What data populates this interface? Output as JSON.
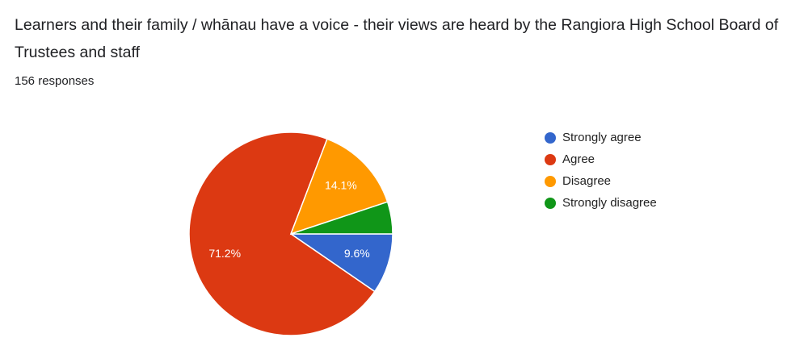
{
  "chart_data": {
    "type": "pie",
    "title": "Learners and their family / whānau have a voice - their views are heard by the Rangiora High School Board of Trustees and staff",
    "subtitle": "156 responses",
    "categories": [
      "Strongly agree",
      "Agree",
      "Disagree",
      "Strongly disagree"
    ],
    "values": [
      9.6,
      71.2,
      14.1,
      5.1
    ],
    "value_labels": [
      "9.6%",
      "71.2%",
      "14.1%",
      null
    ],
    "colors": [
      "#3366cc",
      "#dc3912",
      "#ff9900",
      "#109618"
    ],
    "legend": "right"
  }
}
